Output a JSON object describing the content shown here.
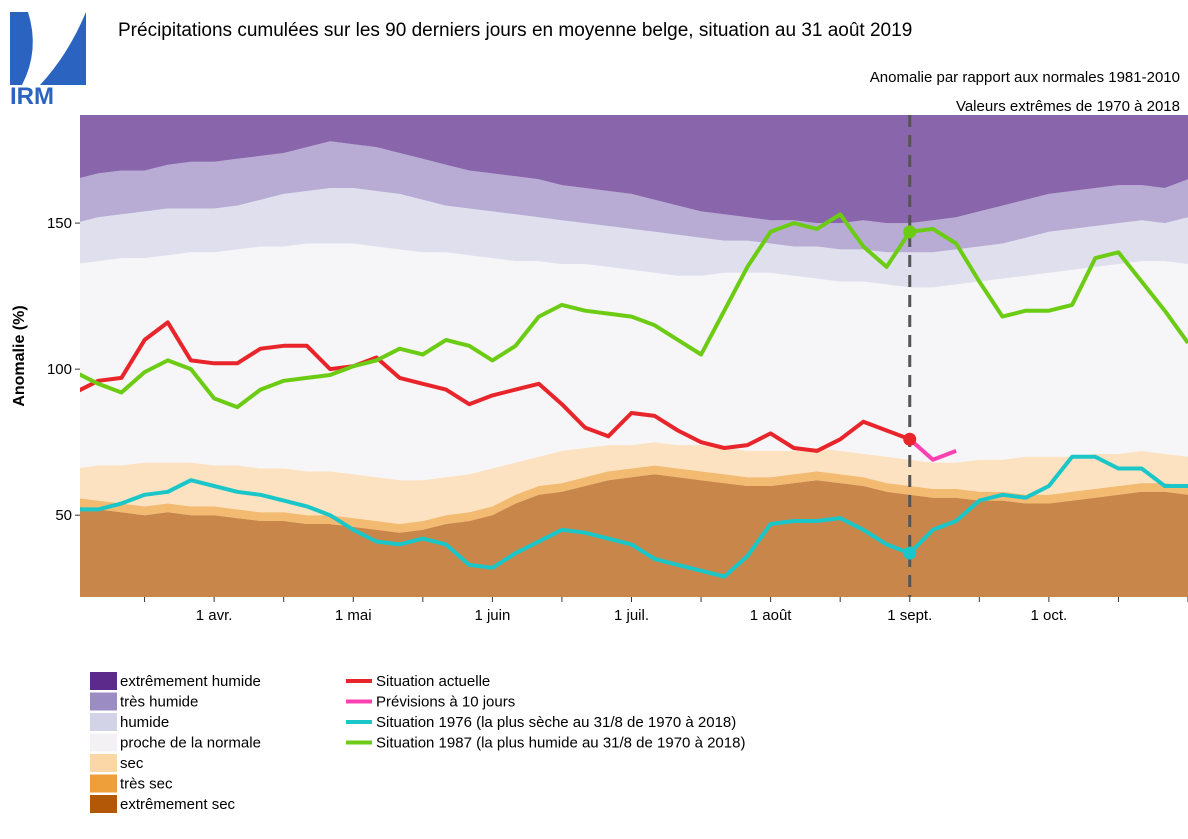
{
  "logo": "IRM",
  "chart_data": {
    "type": "line",
    "title": "Précipitations cumulées sur les 90 derniers jours en moyenne belge, situation au 31 août 2019",
    "subtitles": [
      "Anomalie par rapport aux normales 1981-2010",
      "Valeurs extrêmes de 1970 à 2018"
    ],
    "y_label": "Anomalie (%)",
    "categories": [
      null,
      null,
      null,
      null,
      null,
      null,
      "1 avr.",
      null,
      null,
      null,
      null,
      null,
      "1 mai",
      null,
      null,
      null,
      null,
      null,
      "1 juin",
      null,
      null,
      null,
      null,
      null,
      "1 juil.",
      null,
      null,
      null,
      null,
      null,
      "1 août",
      null,
      null,
      null,
      null,
      null,
      "1 sept.",
      null,
      null,
      null,
      null,
      null,
      "1 oct.",
      null,
      null,
      null,
      null,
      null,
      null
    ],
    "ylim": [
      22,
      187
    ],
    "yticks": [
      50,
      100,
      150
    ],
    "bands": [
      {
        "name": "extrêmement humide",
        "color": "#5c2a8a"
      },
      {
        "name": "très humide",
        "color": "#9c8cc4",
        "values": [
          165,
          167,
          168,
          168,
          170,
          171,
          171,
          172,
          173,
          174,
          176,
          178,
          177,
          176,
          174,
          172,
          170,
          168,
          167,
          166,
          165,
          163,
          162,
          161,
          160,
          158,
          156,
          154,
          153,
          152,
          151,
          151,
          150,
          150,
          151,
          150,
          150,
          151,
          152,
          154,
          156,
          158,
          160,
          161,
          162,
          163,
          163,
          162,
          165
        ]
      },
      {
        "name": "humide",
        "color": "#d3d3e8",
        "values": [
          150,
          152,
          153,
          154,
          155,
          155,
          155,
          156,
          158,
          160,
          161,
          162,
          162,
          161,
          160,
          158,
          156,
          155,
          154,
          153,
          152,
          151,
          150,
          149,
          148,
          147,
          146,
          145,
          144,
          144,
          143,
          142,
          142,
          141,
          141,
          140,
          140,
          140,
          141,
          142,
          143,
          145,
          147,
          148,
          149,
          150,
          151,
          150,
          152
        ]
      },
      {
        "name": "proche de la normale",
        "color": "#f3f1f4",
        "values": [
          136,
          137,
          138,
          138,
          139,
          140,
          140,
          141,
          142,
          142,
          143,
          143,
          143,
          142,
          141,
          140,
          140,
          139,
          138,
          137,
          137,
          136,
          136,
          135,
          134,
          133,
          132,
          132,
          133,
          133,
          133,
          132,
          131,
          130,
          130,
          129,
          128,
          128,
          129,
          130,
          131,
          132,
          133,
          134,
          135,
          136,
          137,
          137,
          136
        ]
      },
      {
        "name": "sec",
        "color": "#fbd7a8",
        "values": [
          66,
          67,
          67,
          68,
          68,
          68,
          67,
          67,
          66,
          66,
          65,
          65,
          64,
          63,
          62,
          62,
          63,
          64,
          66,
          68,
          70,
          72,
          73,
          74,
          74,
          75,
          74,
          74,
          73,
          72,
          72,
          72,
          73,
          72,
          71,
          70,
          69,
          68,
          68,
          69,
          69,
          70,
          70,
          70,
          71,
          71,
          72,
          71,
          70
        ]
      },
      {
        "name": "très sec",
        "color": "#ee9f3a",
        "values": [
          56,
          55,
          54,
          53,
          54,
          53,
          53,
          52,
          51,
          51,
          50,
          50,
          49,
          48,
          47,
          48,
          50,
          51,
          53,
          57,
          60,
          61,
          63,
          65,
          66,
          67,
          66,
          65,
          64,
          63,
          63,
          64,
          65,
          64,
          63,
          61,
          60,
          59,
          59,
          58,
          58,
          57,
          57,
          58,
          59,
          60,
          61,
          61,
          60
        ]
      },
      {
        "name": "extrêmement sec",
        "color": "#b35806",
        "values": [
          53,
          52,
          51,
          50,
          51,
          50,
          50,
          49,
          48,
          48,
          47,
          47,
          46,
          45,
          44,
          45,
          47,
          48,
          50,
          54,
          57,
          58,
          60,
          62,
          63,
          64,
          63,
          62,
          61,
          60,
          60,
          61,
          62,
          61,
          60,
          58,
          57,
          56,
          56,
          55,
          55,
          54,
          54,
          55,
          56,
          57,
          58,
          58,
          57
        ]
      }
    ],
    "series": [
      {
        "name": "Situation actuelle",
        "color": "#e8252a",
        "values": [
          92,
          96,
          97,
          110,
          116,
          103,
          102,
          102,
          107,
          108,
          108,
          100,
          101,
          104,
          97,
          95,
          93,
          88,
          91,
          93,
          95,
          88,
          80,
          77,
          85,
          84,
          79,
          75,
          73,
          74,
          78,
          73,
          72,
          76,
          82,
          79,
          76,
          null,
          null,
          null,
          null,
          null,
          null,
          null,
          null,
          null,
          null,
          null,
          null
        ]
      },
      {
        "name": "Prévisions à 10 jours",
        "color": "#ff40b0",
        "values": [
          null,
          null,
          null,
          null,
          null,
          null,
          null,
          null,
          null,
          null,
          null,
          null,
          null,
          null,
          null,
          null,
          null,
          null,
          null,
          null,
          null,
          null,
          null,
          null,
          null,
          null,
          null,
          null,
          null,
          null,
          null,
          null,
          null,
          null,
          null,
          null,
          76,
          69,
          72,
          null,
          null,
          null,
          null,
          null,
          null,
          null,
          null,
          null,
          null
        ]
      },
      {
        "name": "Situation 1976 (la plus sèche au 31/8 de 1970 à 2018)",
        "color": "#1bc6c9",
        "values": [
          52,
          52,
          54,
          57,
          58,
          62,
          60,
          58,
          57,
          55,
          53,
          50,
          45,
          41,
          40,
          42,
          40,
          33,
          32,
          37,
          41,
          45,
          44,
          42,
          40,
          35,
          33,
          31,
          29,
          36,
          47,
          48,
          48,
          49,
          45,
          40,
          37,
          45,
          48,
          55,
          57,
          56,
          60,
          70,
          70,
          66,
          66,
          60,
          60
        ]
      },
      {
        "name": "Situation 1987 (la plus humide au 31/8 de 1970 à 2018)",
        "color": "#6ccc14",
        "values": [
          99,
          95,
          92,
          99,
          103,
          100,
          90,
          87,
          93,
          96,
          97,
          98,
          101,
          103,
          107,
          105,
          110,
          108,
          103,
          108,
          118,
          122,
          120,
          119,
          118,
          115,
          110,
          105,
          120,
          135,
          147,
          150,
          148,
          153,
          142,
          135,
          147,
          148,
          143,
          130,
          118,
          120,
          120,
          122,
          138,
          140,
          130,
          120,
          109
        ]
      }
    ]
  }
}
